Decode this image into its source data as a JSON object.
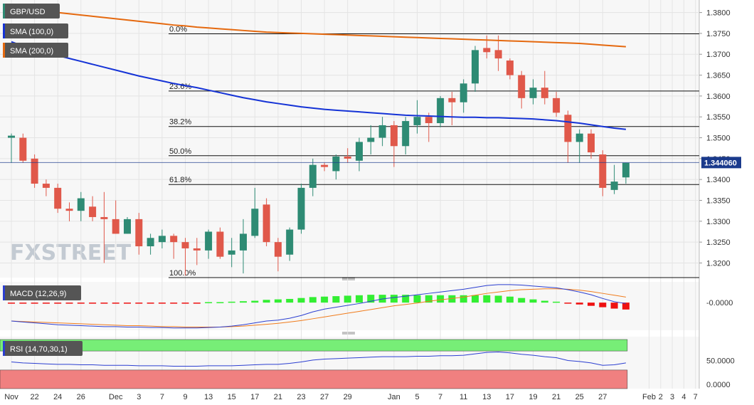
{
  "chart_data": {
    "type": "candlestick",
    "symbol": "GBP/USD",
    "watermark": "FXSTREET",
    "last_price": "1.344060",
    "colors": {
      "up": "#2e8b74",
      "down": "#e0584a",
      "sma100": "#1533d6",
      "sma200": "#e5690f",
      "macd_line": "#2c3fd1",
      "macd_signal": "#f07c1c",
      "hist_pos": "#33ee33",
      "hist_neg": "#ee1111",
      "rsi_line": "#2c3fd1",
      "rsi_upper_zone": "#77ee77",
      "rsi_lower_zone": "#f08080",
      "last_price_tag": "#1a3a8c",
      "tag_bg": "#555555"
    },
    "price_axis": {
      "ylim": [
        1.3165,
        1.383
      ],
      "ticks": [
        "1.3200",
        "1.3250",
        "1.3300",
        "1.3350",
        "1.3400",
        "1.3450",
        "1.3500",
        "1.3550",
        "1.3600",
        "1.3650",
        "1.3700",
        "1.3750",
        "1.3800"
      ]
    },
    "fibonacci": [
      {
        "label": "0.0%",
        "price": 1.3749
      },
      {
        "label": "23.6%",
        "price": 1.3612
      },
      {
        "label": "38.2%",
        "price": 1.3527
      },
      {
        "label": "50.0%",
        "price": 1.3457
      },
      {
        "label": "61.8%",
        "price": 1.3388
      },
      {
        "label": "100.0%",
        "price": 1.3165
      }
    ],
    "candles": [
      {
        "o": 1.35,
        "h": 1.351,
        "l": 1.344,
        "c": 1.3505
      },
      {
        "o": 1.35,
        "h": 1.351,
        "l": 1.344,
        "c": 1.3445
      },
      {
        "o": 1.345,
        "h": 1.346,
        "l": 1.338,
        "c": 1.339
      },
      {
        "o": 1.339,
        "h": 1.34,
        "l": 1.336,
        "c": 1.338
      },
      {
        "o": 1.338,
        "h": 1.339,
        "l": 1.332,
        "c": 1.333
      },
      {
        "o": 1.333,
        "h": 1.3345,
        "l": 1.33,
        "c": 1.3325
      },
      {
        "o": 1.3325,
        "h": 1.337,
        "l": 1.33,
        "c": 1.3355
      },
      {
        "o": 1.3335,
        "h": 1.336,
        "l": 1.33,
        "c": 1.331
      },
      {
        "o": 1.331,
        "h": 1.337,
        "l": 1.32,
        "c": 1.3305
      },
      {
        "o": 1.3305,
        "h": 1.335,
        "l": 1.327,
        "c": 1.327
      },
      {
        "o": 1.327,
        "h": 1.331,
        "l": 1.327,
        "c": 1.3305
      },
      {
        "o": 1.3305,
        "h": 1.332,
        "l": 1.322,
        "c": 1.324
      },
      {
        "o": 1.324,
        "h": 1.327,
        "l": 1.322,
        "c": 1.326
      },
      {
        "o": 1.325,
        "h": 1.328,
        "l": 1.3235,
        "c": 1.3265
      },
      {
        "o": 1.3265,
        "h": 1.327,
        "l": 1.321,
        "c": 1.325
      },
      {
        "o": 1.325,
        "h": 1.326,
        "l": 1.317,
        "c": 1.3235
      },
      {
        "o": 1.3235,
        "h": 1.326,
        "l": 1.3195,
        "c": 1.323
      },
      {
        "o": 1.323,
        "h": 1.328,
        "l": 1.321,
        "c": 1.3275
      },
      {
        "o": 1.3275,
        "h": 1.3285,
        "l": 1.321,
        "c": 1.3215
      },
      {
        "o": 1.322,
        "h": 1.326,
        "l": 1.319,
        "c": 1.323
      },
      {
        "o": 1.323,
        "h": 1.3305,
        "l": 1.3175,
        "c": 1.327
      },
      {
        "o": 1.3265,
        "h": 1.338,
        "l": 1.326,
        "c": 1.333
      },
      {
        "o": 1.334,
        "h": 1.3355,
        "l": 1.324,
        "c": 1.325
      },
      {
        "o": 1.325,
        "h": 1.326,
        "l": 1.318,
        "c": 1.3215
      },
      {
        "o": 1.322,
        "h": 1.3285,
        "l": 1.3205,
        "c": 1.328
      },
      {
        "o": 1.328,
        "h": 1.339,
        "l": 1.327,
        "c": 1.338
      },
      {
        "o": 1.338,
        "h": 1.345,
        "l": 1.336,
        "c": 1.3435
      },
      {
        "o": 1.3435,
        "h": 1.344,
        "l": 1.342,
        "c": 1.343
      },
      {
        "o": 1.342,
        "h": 1.346,
        "l": 1.34,
        "c": 1.3455
      },
      {
        "o": 1.3455,
        "h": 1.3475,
        "l": 1.344,
        "c": 1.345
      },
      {
        "o": 1.3445,
        "h": 1.35,
        "l": 1.342,
        "c": 1.349
      },
      {
        "o": 1.349,
        "h": 1.353,
        "l": 1.346,
        "c": 1.35
      },
      {
        "o": 1.35,
        "h": 1.355,
        "l": 1.348,
        "c": 1.353
      },
      {
        "o": 1.353,
        "h": 1.354,
        "l": 1.343,
        "c": 1.348
      },
      {
        "o": 1.348,
        "h": 1.355,
        "l": 1.346,
        "c": 1.354
      },
      {
        "o": 1.353,
        "h": 1.359,
        "l": 1.351,
        "c": 1.355
      },
      {
        "o": 1.355,
        "h": 1.356,
        "l": 1.349,
        "c": 1.3535
      },
      {
        "o": 1.3535,
        "h": 1.36,
        "l": 1.3525,
        "c": 1.3595
      },
      {
        "o": 1.3595,
        "h": 1.361,
        "l": 1.353,
        "c": 1.3585
      },
      {
        "o": 1.3585,
        "h": 1.364,
        "l": 1.356,
        "c": 1.363
      },
      {
        "o": 1.363,
        "h": 1.372,
        "l": 1.361,
        "c": 1.371
      },
      {
        "o": 1.3715,
        "h": 1.3745,
        "l": 1.369,
        "c": 1.3705
      },
      {
        "o": 1.371,
        "h": 1.3745,
        "l": 1.366,
        "c": 1.369
      },
      {
        "o": 1.3685,
        "h": 1.369,
        "l": 1.364,
        "c": 1.365
      },
      {
        "o": 1.365,
        "h": 1.366,
        "l": 1.357,
        "c": 1.3595
      },
      {
        "o": 1.3595,
        "h": 1.364,
        "l": 1.358,
        "c": 1.362
      },
      {
        "o": 1.362,
        "h": 1.366,
        "l": 1.358,
        "c": 1.3595
      },
      {
        "o": 1.3595,
        "h": 1.361,
        "l": 1.355,
        "c": 1.356
      },
      {
        "o": 1.3555,
        "h": 1.3565,
        "l": 1.344,
        "c": 1.349
      },
      {
        "o": 1.349,
        "h": 1.352,
        "l": 1.344,
        "c": 1.351
      },
      {
        "o": 1.351,
        "h": 1.352,
        "l": 1.345,
        "c": 1.3465
      },
      {
        "o": 1.346,
        "h": 1.347,
        "l": 1.336,
        "c": 1.338
      },
      {
        "o": 1.3375,
        "h": 1.3435,
        "l": 1.3365,
        "c": 1.3395
      },
      {
        "o": 1.3405,
        "h": 1.344,
        "l": 1.339,
        "c": 1.344
      }
    ],
    "sma100": {
      "label": "SMA (100,0)",
      "values": [
        1.373,
        1.372,
        1.3712,
        1.3704,
        1.3697,
        1.369,
        1.3683,
        1.3676,
        1.3669,
        1.3662,
        1.3655,
        1.3648,
        1.3642,
        1.3636,
        1.363,
        1.3625,
        1.362,
        1.3614,
        1.3608,
        1.3602,
        1.3596,
        1.3591,
        1.3586,
        1.3582,
        1.3578,
        1.3574,
        1.3571,
        1.3568,
        1.3566,
        1.3564,
        1.3562,
        1.356,
        1.3558,
        1.3556,
        1.3554,
        1.3553,
        1.3552,
        1.3551,
        1.355,
        1.3549,
        1.3549,
        1.3548,
        1.3548,
        1.3547,
        1.3546,
        1.3545,
        1.3543,
        1.3541,
        1.3538,
        1.3535,
        1.3531,
        1.3527,
        1.3523,
        1.352
      ]
    },
    "sma200": {
      "label": "SMA (200,0)",
      "values": [
        1.3812,
        1.3809,
        1.3806,
        1.3803,
        1.38,
        1.3797,
        1.3794,
        1.3791,
        1.3788,
        1.3785,
        1.3782,
        1.3779,
        1.3776,
        1.3773,
        1.377,
        1.3768,
        1.3765,
        1.3763,
        1.3761,
        1.3759,
        1.3757,
        1.3755,
        1.3753,
        1.3752,
        1.3751,
        1.375,
        1.3749,
        1.3748,
        1.3747,
        1.3746,
        1.3745,
        1.3744,
        1.3743,
        1.3742,
        1.3741,
        1.374,
        1.3739,
        1.3738,
        1.3737,
        1.3736,
        1.3735,
        1.3734,
        1.3733,
        1.3732,
        1.3731,
        1.373,
        1.3729,
        1.3728,
        1.3727,
        1.3726,
        1.3724,
        1.3722,
        1.372,
        1.3718
      ]
    },
    "macd": {
      "label": "MACD (12,26,9)",
      "zero_label": "-0.0000",
      "line": [
        -0.004,
        -0.0042,
        -0.0044,
        -0.0046,
        -0.0048,
        -0.0049,
        -0.005,
        -0.0051,
        -0.0052,
        -0.0052,
        -0.0053,
        -0.0053,
        -0.0054,
        -0.0054,
        -0.0055,
        -0.0055,
        -0.0055,
        -0.0054,
        -0.0053,
        -0.0051,
        -0.0048,
        -0.0044,
        -0.004,
        -0.0038,
        -0.0034,
        -0.0028,
        -0.002,
        -0.0014,
        -0.001,
        -0.0006,
        -0.0002,
        0.0003,
        0.0008,
        0.0011,
        0.0014,
        0.0017,
        0.002,
        0.0023,
        0.0026,
        0.0029,
        0.0033,
        0.0037,
        0.0039,
        0.0039,
        0.0038,
        0.0036,
        0.0034,
        0.0032,
        0.0028,
        0.0023,
        0.0017,
        0.0009,
        0.0002,
        -0.0002
      ],
      "signal": [
        -0.004,
        -0.0041,
        -0.0042,
        -0.0043,
        -0.0044,
        -0.0045,
        -0.0046,
        -0.0047,
        -0.0048,
        -0.0049,
        -0.005,
        -0.005,
        -0.0051,
        -0.0052,
        -0.0052,
        -0.0053,
        -0.0053,
        -0.0053,
        -0.0053,
        -0.0052,
        -0.0051,
        -0.0049,
        -0.0047,
        -0.0045,
        -0.0042,
        -0.0039,
        -0.0035,
        -0.0031,
        -0.0027,
        -0.0023,
        -0.0019,
        -0.0015,
        -0.0011,
        -0.0007,
        -0.0004,
        -0.0001,
        0.0003,
        0.0006,
        0.0009,
        0.0012,
        0.0016,
        0.002,
        0.0023,
        0.0026,
        0.0028,
        0.0029,
        0.003,
        0.003,
        0.0029,
        0.0027,
        0.0024,
        0.002,
        0.0016,
        0.0012
      ],
      "hist": [
        -0.0001,
        -0.0001,
        -0.0001,
        -0.0001,
        -0.0001,
        -0.0001,
        -0.0001,
        -0.0001,
        -0.0001,
        -0.0001,
        -0.0001,
        -0.0001,
        -0.0001,
        -0.0001,
        -0.0001,
        -0.0001,
        -0.0001,
        0.0001,
        0.0001,
        0.0002,
        0.0003,
        0.0004,
        0.0006,
        0.0007,
        0.0008,
        0.001,
        0.0012,
        0.0013,
        0.0014,
        0.0015,
        0.0016,
        0.0017,
        0.0017,
        0.0017,
        0.0017,
        0.0016,
        0.0016,
        0.0016,
        0.0016,
        0.0016,
        0.0016,
        0.0016,
        0.0015,
        0.0013,
        0.001,
        0.0007,
        0.0004,
        0.0002,
        -0.0001,
        -0.0004,
        -0.0007,
        -0.001,
        -0.0013,
        -0.0015
      ]
    },
    "rsi": {
      "label": "RSI (14,70,30,1)",
      "ticks": [
        "0.0000",
        "50.0000"
      ],
      "upper": 70,
      "lower": 30,
      "values": [
        47,
        45,
        44,
        43,
        42,
        42,
        41,
        41,
        40,
        40,
        40,
        39,
        39,
        39,
        38,
        38,
        38,
        39,
        39,
        39,
        40,
        41,
        42,
        42,
        44,
        47,
        51,
        53,
        54,
        55,
        56,
        57,
        58,
        58,
        58,
        59,
        59,
        60,
        60,
        61,
        64,
        67,
        68,
        66,
        63,
        61,
        58,
        56,
        50,
        48,
        45,
        40,
        41,
        45
      ]
    },
    "x_axis": {
      "labels": [
        {
          "t": "Nov",
          "i": 0
        },
        {
          "t": "22",
          "i": 2
        },
        {
          "t": "24",
          "i": 4
        },
        {
          "t": "26",
          "i": 6
        },
        {
          "t": "Dec",
          "i": 9
        },
        {
          "t": "3",
          "i": 11
        },
        {
          "t": "7",
          "i": 13
        },
        {
          "t": "9",
          "i": 15
        },
        {
          "t": "13",
          "i": 17
        },
        {
          "t": "15",
          "i": 19
        },
        {
          "t": "17",
          "i": 21
        },
        {
          "t": "21",
          "i": 23
        },
        {
          "t": "23",
          "i": 25
        },
        {
          "t": "27",
          "i": 27
        },
        {
          "t": "29",
          "i": 29
        },
        {
          "t": "Jan",
          "i": 33
        },
        {
          "t": "5",
          "i": 35
        },
        {
          "t": "7",
          "i": 37
        },
        {
          "t": "11",
          "i": 39
        },
        {
          "t": "13",
          "i": 41
        },
        {
          "t": "17",
          "i": 43
        },
        {
          "t": "19",
          "i": 45
        },
        {
          "t": "21",
          "i": 47
        },
        {
          "t": "25",
          "i": 49
        },
        {
          "t": "27",
          "i": 51
        },
        {
          "t": "Feb",
          "i": 55
        },
        {
          "t": "2",
          "i": 56
        },
        {
          "t": "3",
          "i": 57
        },
        {
          "t": "4",
          "i": 58
        },
        {
          "t": "7",
          "i": 59
        }
      ]
    }
  }
}
